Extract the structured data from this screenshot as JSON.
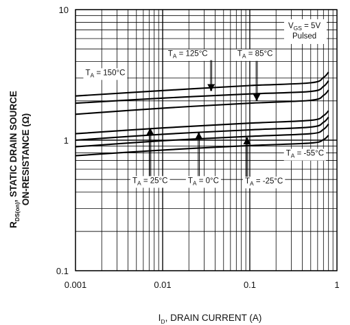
{
  "chart_data": {
    "type": "line",
    "x_scale": "log",
    "y_scale": "log",
    "xlim": [
      0.001,
      1
    ],
    "ylim": [
      0.1,
      10
    ],
    "grid": true,
    "xlabel": {
      "main": "I",
      "sub": "D",
      "rest": ", DRAIN CURRENT (A)"
    },
    "ylabel": {
      "main": "R",
      "sub": "DS(on)",
      "rest": ", STATIC DRAIN SOURCE",
      "line2": "ON-RESISTANCE (Ω)"
    },
    "x_ticks": [
      {
        "value": 0.001,
        "label": "0.001"
      },
      {
        "value": 0.01,
        "label": "0.01"
      },
      {
        "value": 0.1,
        "label": "0.1"
      },
      {
        "value": 1,
        "label": "1"
      }
    ],
    "y_ticks": [
      {
        "value": 10,
        "label": "10"
      },
      {
        "value": 1,
        "label": "1"
      },
      {
        "value": 0.1,
        "label": "0.1"
      }
    ],
    "conditions": {
      "vgs_main": "V",
      "vgs_sub": "GS",
      "vgs_rest": " = 5V",
      "mode": "Pulsed"
    },
    "series": [
      {
        "name": "T_A = 150°C",
        "x": [
          0.001,
          0.01,
          0.1,
          0.5,
          0.7,
          0.8
        ],
        "y": [
          2.18,
          2.4,
          2.62,
          2.75,
          3.02,
          3.32
        ]
      },
      {
        "name": "T_A = 125°C",
        "x": [
          0.001,
          0.01,
          0.1,
          0.5,
          0.7,
          0.8
        ],
        "y": [
          1.92,
          2.1,
          2.26,
          2.36,
          2.58,
          2.85
        ]
      },
      {
        "name": "T_A = 85°C",
        "x": [
          0.001,
          0.01,
          0.1,
          0.5,
          0.7,
          0.8
        ],
        "y": [
          1.58,
          1.76,
          1.92,
          2.02,
          2.2,
          2.42
        ]
      },
      {
        "name": "T_A = 25°C",
        "x": [
          0.001,
          0.01,
          0.1,
          0.5,
          0.7,
          0.8
        ],
        "y": [
          1.12,
          1.24,
          1.35,
          1.42,
          1.54,
          1.68
        ]
      },
      {
        "name": "T_A = 0°C",
        "x": [
          0.001,
          0.01,
          0.1,
          0.5,
          0.7,
          0.8
        ],
        "y": [
          1.0,
          1.11,
          1.2,
          1.26,
          1.37,
          1.5
        ]
      },
      {
        "name": "T_A = -25°C",
        "x": [
          0.001,
          0.01,
          0.1,
          0.5,
          0.7,
          0.8
        ],
        "y": [
          0.89,
          0.99,
          1.07,
          1.12,
          1.21,
          1.33
        ]
      },
      {
        "name": "T_A = -55°C",
        "x": [
          0.001,
          0.01,
          0.1,
          0.5,
          0.7,
          0.8
        ],
        "y": [
          0.76,
          0.84,
          0.91,
          0.95,
          1.01,
          1.09
        ]
      }
    ],
    "annotations": [
      {
        "id": "t150",
        "main": "T",
        "sub": "A",
        "rest": " = 150°C",
        "x": 0.0013,
        "y": 3.15
      },
      {
        "id": "t125",
        "main": "T",
        "sub": "A",
        "rest": " = 125°C",
        "x": 0.0115,
        "y": 4.4
      },
      {
        "id": "t85",
        "main": "T",
        "sub": "A",
        "rest": " = 85°C",
        "x": 0.072,
        "y": 4.4
      },
      {
        "id": "t55",
        "main": "T",
        "sub": "A",
        "rest": " = -55°C",
        "x": 0.26,
        "y": 0.76
      },
      {
        "id": "t25",
        "main": "T",
        "sub": "A",
        "rest": " = 25°C",
        "x": 0.0045,
        "y": 0.47
      },
      {
        "id": "t0",
        "main": "T",
        "sub": "A",
        "rest": " = 0°C",
        "x": 0.0195,
        "y": 0.47
      },
      {
        "id": "tm25",
        "main": "T",
        "sub": "A",
        "rest": " = -25°C",
        "x": 0.088,
        "y": 0.465
      }
    ],
    "arrows": [
      {
        "id": "arrow-125",
        "direction": "down",
        "x": 0.036,
        "y_from": 4.1,
        "y_to": 2.38
      },
      {
        "id": "arrow-85",
        "direction": "down",
        "x": 0.12,
        "y_from": 4.1,
        "y_to": 2.0
      },
      {
        "id": "arrow-25",
        "direction": "up",
        "x": 0.0072,
        "y_from": 0.49,
        "y_to": 1.24
      },
      {
        "id": "arrow-0",
        "direction": "up",
        "x": 0.026,
        "y_from": 0.49,
        "y_to": 1.15
      },
      {
        "id": "arrow-m25",
        "direction": "up",
        "x": 0.093,
        "y_from": 0.49,
        "y_to": 1.05
      }
    ]
  }
}
